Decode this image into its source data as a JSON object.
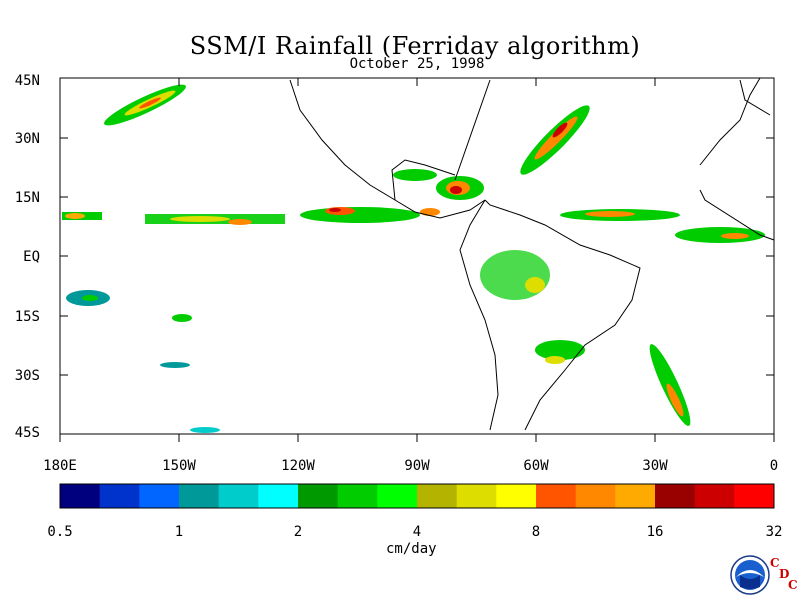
{
  "title": "SSM/I Rainfall (Ferriday algorithm)",
  "date": "October 25, 1998",
  "lat_labels": [
    "45N",
    "30N",
    "15N",
    "EQ",
    "15S",
    "30S",
    "45S"
  ],
  "lon_labels": [
    "180E",
    "150W",
    "120W",
    "90W",
    "60W",
    "30W",
    "0"
  ],
  "colorbar": {
    "colors": [
      "#00007f",
      "#0033cc",
      "#0066ff",
      "#009999",
      "#00cccc",
      "#00ffff",
      "#009900",
      "#00cc00",
      "#00ff00",
      "#b3b300",
      "#dddd00",
      "#ffff00",
      "#ff5500",
      "#ff8800",
      "#ffaa00",
      "#990000",
      "#cc0000",
      "#ff0000"
    ],
    "tick_labels": [
      "0.5",
      "1",
      "2",
      "4",
      "8",
      "16",
      "32"
    ],
    "units": "cm/day"
  },
  "logo": {
    "icon": "noaa-logo",
    "letters": [
      "C",
      "D",
      "C"
    ]
  }
}
